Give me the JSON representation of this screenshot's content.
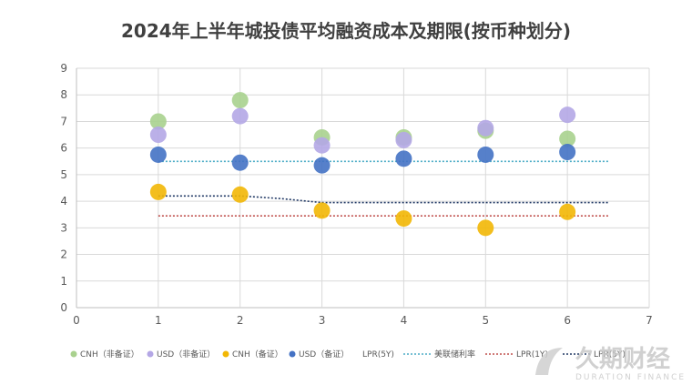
{
  "chart_data": {
    "type": "scatter",
    "title": "2024年上半年城投债平均融资成本及期限(按币种划分)",
    "xlim": [
      0,
      7
    ],
    "ylim": [
      0,
      9
    ],
    "x_ticks": [
      0,
      1,
      2,
      3,
      4,
      5,
      6,
      7
    ],
    "y_ticks": [
      0,
      1,
      2,
      3,
      4,
      5,
      6,
      7,
      8,
      9
    ],
    "grid": true,
    "legend_position": "bottom",
    "series": [
      {
        "name": "CNH（非备证）",
        "kind": "point",
        "color": "#a9d18e",
        "points": [
          {
            "x": 1,
            "y": 7.0
          },
          {
            "x": 2,
            "y": 7.8
          },
          {
            "x": 3,
            "y": 6.4
          },
          {
            "x": 4,
            "y": 6.4
          },
          {
            "x": 5,
            "y": 6.65
          },
          {
            "x": 6,
            "y": 6.35
          }
        ]
      },
      {
        "name": "USD（非备证）",
        "kind": "point",
        "color": "#b4a7e5",
        "points": [
          {
            "x": 1,
            "y": 6.5
          },
          {
            "x": 2,
            "y": 7.2
          },
          {
            "x": 3,
            "y": 6.1
          },
          {
            "x": 4,
            "y": 6.3
          },
          {
            "x": 5,
            "y": 6.75
          },
          {
            "x": 6,
            "y": 7.25
          }
        ]
      },
      {
        "name": "CNH（备证）",
        "kind": "point",
        "color": "#f2b705",
        "points": [
          {
            "x": 1,
            "y": 4.35
          },
          {
            "x": 2,
            "y": 4.25
          },
          {
            "x": 3,
            "y": 3.65
          },
          {
            "x": 4,
            "y": 3.35
          },
          {
            "x": 5,
            "y": 3.0
          },
          {
            "x": 6,
            "y": 3.6
          }
        ]
      },
      {
        "name": "USD（备证）",
        "kind": "point",
        "color": "#4472c4",
        "points": [
          {
            "x": 1,
            "y": 5.75
          },
          {
            "x": 2,
            "y": 5.45
          },
          {
            "x": 3,
            "y": 5.35
          },
          {
            "x": 4,
            "y": 5.6
          },
          {
            "x": 5,
            "y": 5.75
          },
          {
            "x": 6,
            "y": 5.85
          }
        ]
      },
      {
        "name": "LPR(5Y)",
        "kind": "line",
        "color": "#203864",
        "points": [
          {
            "x": 1,
            "y": 4.2
          },
          {
            "x": 2,
            "y": 4.2
          },
          {
            "x": 2.5,
            "y": 4.1
          },
          {
            "x": 3,
            "y": 3.95
          },
          {
            "x": 4,
            "y": 3.95
          },
          {
            "x": 5,
            "y": 3.95
          },
          {
            "x": 6.5,
            "y": 3.95
          }
        ]
      },
      {
        "name": "美联储利率",
        "kind": "line",
        "color": "#4bacc6",
        "points": [
          {
            "x": 1,
            "y": 5.5
          },
          {
            "x": 6.5,
            "y": 5.5
          }
        ]
      },
      {
        "name": "LPR(1Y)",
        "kind": "line",
        "color": "#c0504d",
        "points": [
          {
            "x": 1,
            "y": 3.45
          },
          {
            "x": 6.5,
            "y": 3.45
          }
        ]
      }
    ]
  },
  "legend": {
    "items": [
      {
        "label": "CNH（非备证）",
        "kind": "point",
        "color": "#a9d18e"
      },
      {
        "label": "USD（非备证）",
        "kind": "point",
        "color": "#b4a7e5"
      },
      {
        "label": "CNH（备证）",
        "kind": "point",
        "color": "#f2b705"
      },
      {
        "label": "USD（备证）",
        "kind": "point",
        "color": "#4472c4"
      },
      {
        "label": "LPR(5Y)",
        "kind": "text",
        "color": "#595959"
      },
      {
        "label": "美联储利率",
        "kind": "line",
        "color": "#4bacc6"
      },
      {
        "label": "LPR(1Y)",
        "kind": "line",
        "color": "#c0504d"
      },
      {
        "label": "LPR(5Y)",
        "kind": "line",
        "color": "#203864"
      }
    ]
  },
  "watermark": {
    "name": "久期财经",
    "subtitle": "DURATION FINANCE"
  }
}
